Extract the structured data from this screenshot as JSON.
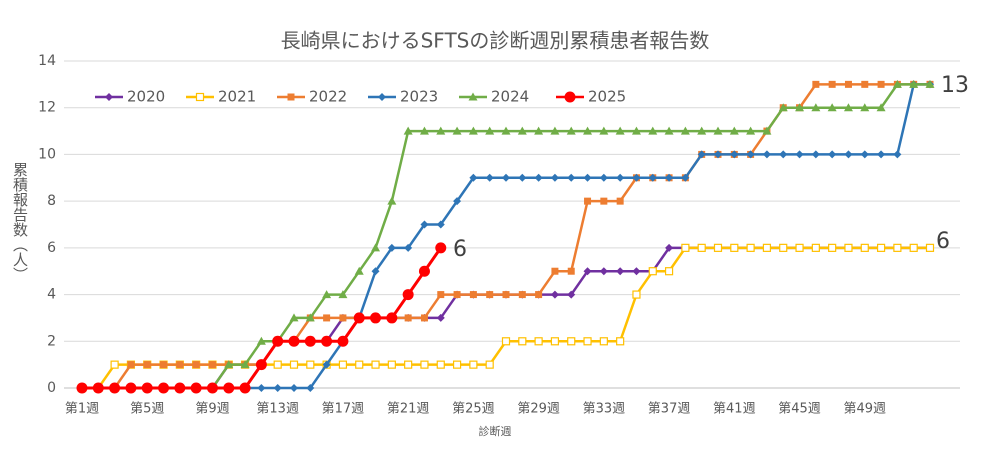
{
  "chart_data": {
    "type": "line",
    "title": "長崎県におけるSFTSの診断週別累積患者報告数",
    "y_label": "累積報告数（人）",
    "x_label": "診断週",
    "categories": [
      "第1週",
      null,
      null,
      null,
      "第5週",
      null,
      null,
      null,
      "第9週",
      null,
      null,
      null,
      "第13週",
      null,
      null,
      null,
      "第17週",
      null,
      null,
      null,
      "第21週",
      null,
      null,
      null,
      "第25週",
      null,
      null,
      null,
      "第29週",
      null,
      null,
      null,
      "第33週",
      null,
      null,
      null,
      "第37週",
      null,
      null,
      null,
      "第41週",
      null,
      null,
      null,
      "第45週",
      null,
      null,
      null,
      "第49週",
      null,
      null,
      null,
      null
    ],
    "ylim": [
      0,
      14
    ],
    "yticks": [
      0,
      2,
      4,
      6,
      8,
      10,
      12,
      14
    ],
    "grid": true,
    "legend": "top-left",
    "series": [
      {
        "name": "2020",
        "color": "#7030a0",
        "marker": "diamond",
        "values": [
          0,
          0,
          0,
          0,
          0,
          0,
          0,
          0,
          0,
          1,
          1,
          1,
          2,
          2,
          2,
          2,
          3,
          3,
          3,
          3,
          3,
          3,
          3,
          4,
          4,
          4,
          4,
          4,
          4,
          4,
          4,
          5,
          5,
          5,
          5,
          5,
          6,
          6,
          6,
          6,
          6,
          6,
          6,
          6,
          6,
          6,
          6,
          6,
          6,
          6,
          6,
          6,
          6
        ]
      },
      {
        "name": "2021",
        "color": "#ffc000",
        "marker": "open-square",
        "values": [
          0,
          0,
          1,
          1,
          1,
          1,
          1,
          1,
          1,
          1,
          1,
          1,
          1,
          1,
          1,
          1,
          1,
          1,
          1,
          1,
          1,
          1,
          1,
          1,
          1,
          1,
          2,
          2,
          2,
          2,
          2,
          2,
          2,
          2,
          4,
          5,
          5,
          6,
          6,
          6,
          6,
          6,
          6,
          6,
          6,
          6,
          6,
          6,
          6,
          6,
          6,
          6,
          6
        ]
      },
      {
        "name": "2022",
        "color": "#ed7d31",
        "marker": "square",
        "values": [
          0,
          0,
          0,
          1,
          1,
          1,
          1,
          1,
          1,
          1,
          1,
          1,
          2,
          2,
          3,
          3,
          3,
          3,
          3,
          3,
          3,
          3,
          4,
          4,
          4,
          4,
          4,
          4,
          4,
          5,
          5,
          8,
          8,
          8,
          9,
          9,
          9,
          9,
          10,
          10,
          10,
          10,
          11,
          12,
          12,
          13,
          13,
          13,
          13,
          13,
          13,
          13,
          13
        ]
      },
      {
        "name": "2023",
        "color": "#2e75b6",
        "marker": "diamond",
        "values": [
          0,
          0,
          0,
          0,
          0,
          0,
          0,
          0,
          0,
          0,
          0,
          0,
          0,
          0,
          0,
          1,
          2,
          3,
          5,
          6,
          6,
          7,
          7,
          8,
          9,
          9,
          9,
          9,
          9,
          9,
          9,
          9,
          9,
          9,
          9,
          9,
          9,
          9,
          10,
          10,
          10,
          10,
          10,
          10,
          10,
          10,
          10,
          10,
          10,
          10,
          10,
          13,
          13
        ]
      },
      {
        "name": "2024",
        "color": "#70ad47",
        "marker": "triangle",
        "values": [
          0,
          0,
          0,
          0,
          0,
          0,
          0,
          0,
          0,
          1,
          1,
          2,
          2,
          3,
          3,
          4,
          4,
          5,
          6,
          8,
          11,
          11,
          11,
          11,
          11,
          11,
          11,
          11,
          11,
          11,
          11,
          11,
          11,
          11,
          11,
          11,
          11,
          11,
          11,
          11,
          11,
          11,
          11,
          12,
          12,
          12,
          12,
          12,
          12,
          12,
          13,
          13,
          13
        ]
      },
      {
        "name": "2025",
        "color": "#ff0000",
        "marker": "circle",
        "values": [
          0,
          0,
          0,
          0,
          0,
          0,
          0,
          0,
          0,
          0,
          0,
          1,
          2,
          2,
          2,
          2,
          2,
          3,
          3,
          3,
          4,
          5,
          6,
          null,
          null,
          null,
          null,
          null,
          null,
          null,
          null,
          null,
          null,
          null,
          null,
          null,
          null,
          null,
          null,
          null,
          null,
          null,
          null,
          null,
          null,
          null,
          null,
          null,
          null,
          null,
          null,
          null,
          null
        ]
      }
    ],
    "annotations": [
      "6",
      "13",
      "6"
    ]
  }
}
